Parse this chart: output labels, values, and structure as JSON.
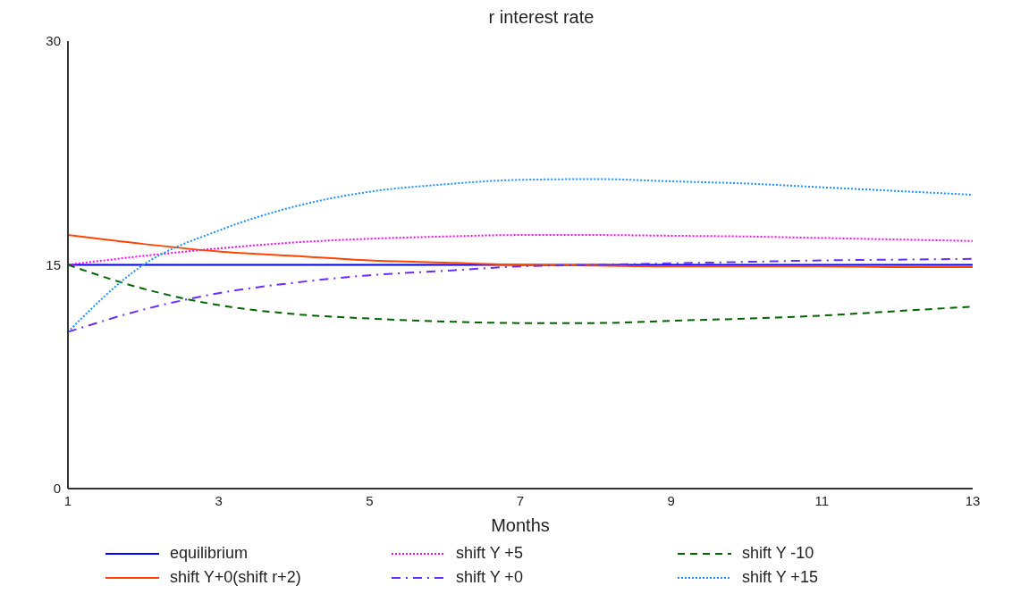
{
  "chart_data": {
    "type": "line",
    "title": "r interest rate",
    "xlabel": "Months",
    "x": [
      1,
      2,
      3,
      4,
      5,
      6,
      7,
      8,
      9,
      10,
      11,
      12,
      13
    ],
    "xlim": [
      1,
      13
    ],
    "xticks": [
      1,
      3,
      5,
      7,
      9,
      11,
      13
    ],
    "ylim": [
      0,
      30
    ],
    "yticks": [
      0,
      15,
      30
    ],
    "grid": false,
    "legend": "bottom",
    "marker": "none",
    "series": [
      {
        "name": "equilibrium",
        "color": "#0000ff",
        "line_style": "solid",
        "values": [
          15,
          15,
          15,
          15,
          15,
          15,
          15,
          15,
          15,
          15,
          15,
          15,
          15
        ]
      },
      {
        "name": "shift Y +5",
        "color": "#ff00ff",
        "line_style": "dotted",
        "values": [
          15,
          15.6,
          16.1,
          16.5,
          16.75,
          16.9,
          17.0,
          17.0,
          16.95,
          16.9,
          16.8,
          16.7,
          16.6
        ]
      },
      {
        "name": "shift Y -10",
        "color": "#006400",
        "line_style": "dashed",
        "values": [
          15,
          13.4,
          12.3,
          11.7,
          11.4,
          11.2,
          11.1,
          11.1,
          11.25,
          11.4,
          11.6,
          11.9,
          12.2
        ]
      },
      {
        "name": "shift Y+0(shift r+2)",
        "color": "#ff4500",
        "line_style": "solid",
        "values": [
          17.0,
          16.4,
          15.9,
          15.6,
          15.3,
          15.15,
          15.0,
          14.95,
          14.9,
          14.9,
          14.9,
          14.85,
          14.85
        ]
      },
      {
        "name": "shift Y +0",
        "color": "#6a2cff",
        "line_style": "dashdot",
        "values": [
          10.5,
          12.0,
          13.1,
          13.8,
          14.3,
          14.6,
          14.9,
          15.0,
          15.1,
          15.2,
          15.3,
          15.35,
          15.4
        ]
      },
      {
        "name": "shift Y +15",
        "color": "#1e90ff",
        "line_style": "dotted",
        "values": [
          10.5,
          15.0,
          17.3,
          18.9,
          19.9,
          20.4,
          20.7,
          20.75,
          20.6,
          20.45,
          20.2,
          19.95,
          19.7
        ]
      }
    ]
  }
}
